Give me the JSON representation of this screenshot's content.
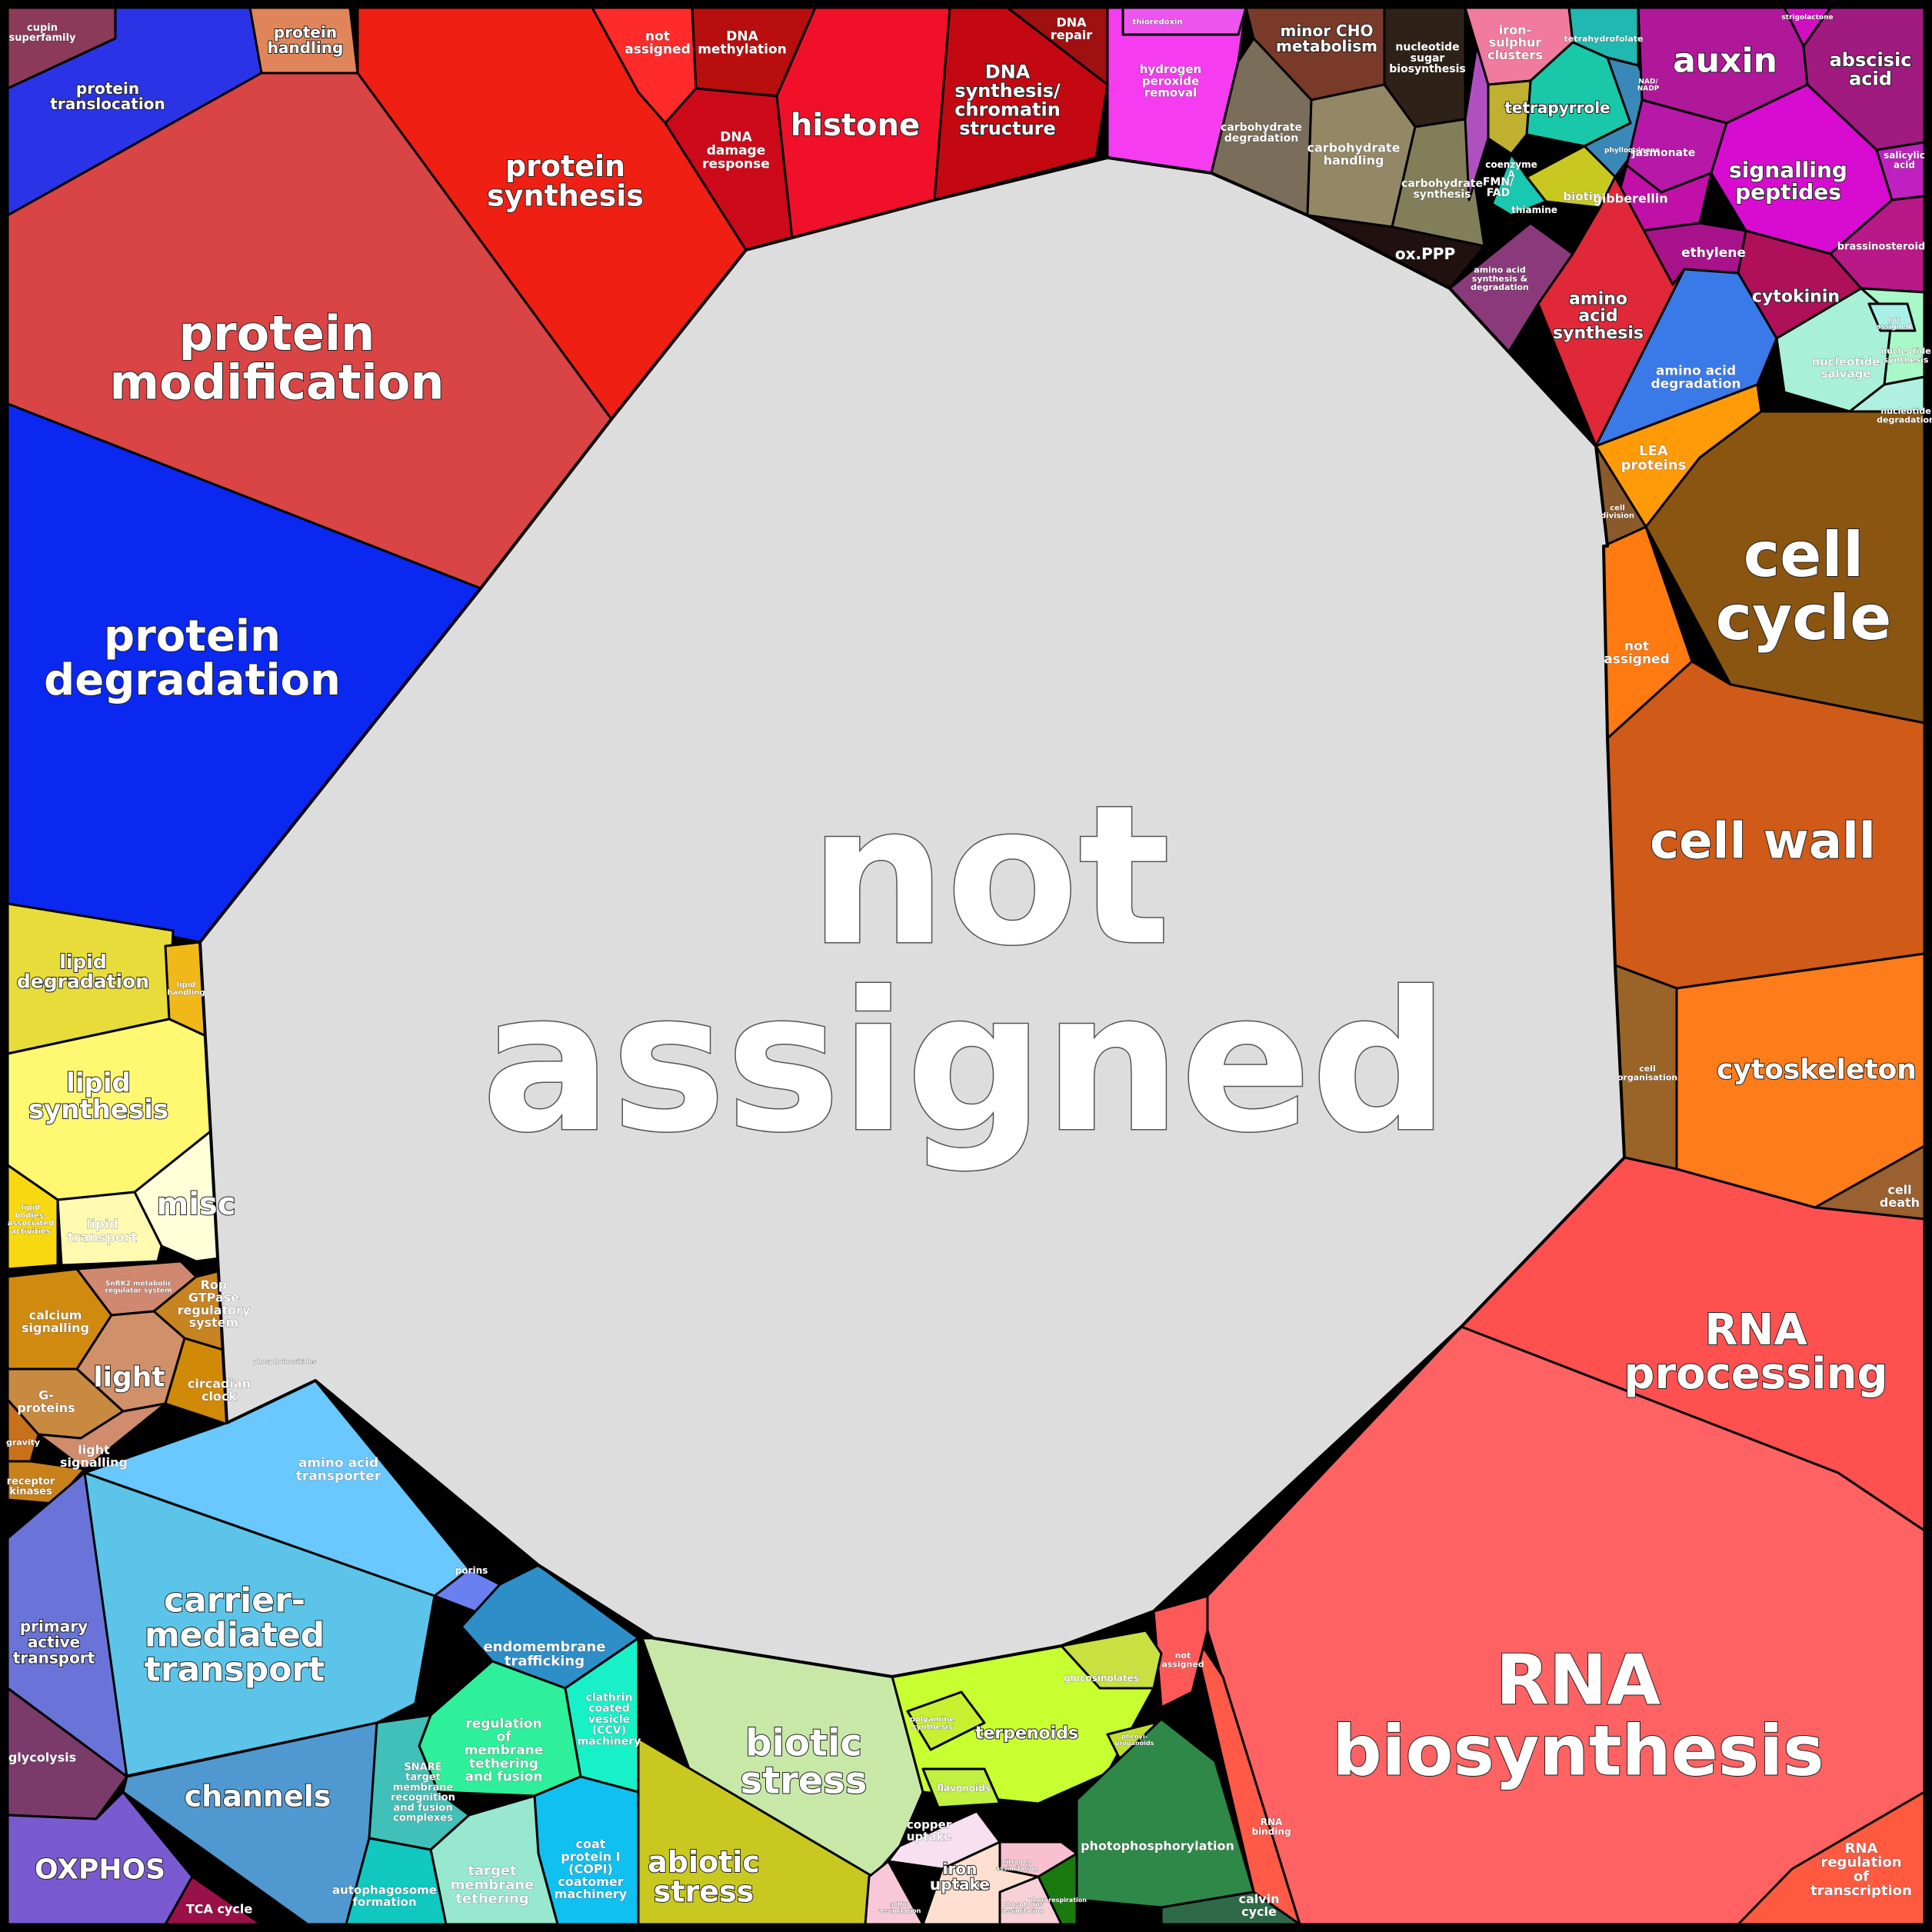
{
  "center": {
    "label": [
      "not",
      "assigned"
    ],
    "color": "#dddddd"
  },
  "regions": [
    {
      "id": "cupin",
      "lines": [
        "cupin",
        "superfamily"
      ],
      "color": "#8b3a5a"
    },
    {
      "id": "protein-translocation",
      "lines": [
        "protein",
        "translocation"
      ],
      "color": "#2a34e6"
    },
    {
      "id": "protein-handling",
      "lines": [
        "protein",
        "handling"
      ],
      "color": "#e0855a"
    },
    {
      "id": "protein-synthesis",
      "lines": [
        "protein",
        "synthesis"
      ],
      "color": "#f01f14"
    },
    {
      "id": "protein-modification",
      "lines": [
        "protein",
        "modification"
      ],
      "color": "#d94444"
    },
    {
      "id": "protein-degradation",
      "lines": [
        "protein",
        "degradation"
      ],
      "color": "#0a28f0"
    },
    {
      "id": "dna-not-assigned",
      "lines": [
        "not",
        "assigned"
      ],
      "color": "#ff2a2a"
    },
    {
      "id": "dna-methylation",
      "lines": [
        "DNA",
        "methylation"
      ],
      "color": "#b80e0e"
    },
    {
      "id": "dna-damage",
      "lines": [
        "DNA",
        "damage",
        "response"
      ],
      "color": "#cc0a1a"
    },
    {
      "id": "histone",
      "lines": [
        "histone"
      ],
      "color": "#f0102a"
    },
    {
      "id": "dna-synthesis",
      "lines": [
        "DNA",
        "synthesis/",
        "chromatin",
        "structure"
      ],
      "color": "#c40812"
    },
    {
      "id": "dna-repair",
      "lines": [
        "DNA",
        "repair"
      ],
      "color": "#a01010"
    },
    {
      "id": "redox",
      "lines": [
        "hydrogen",
        "peroxide",
        "removal"
      ],
      "color": "#f53cf0"
    },
    {
      "id": "thioredoxin",
      "lines": [
        "thioredoxin"
      ],
      "color": "#ee55ee"
    },
    {
      "id": "minor-cho",
      "lines": [
        "minor CHO",
        "metabolism"
      ],
      "color": "#7a3a2a"
    },
    {
      "id": "nucleotide-sugar",
      "lines": [
        "nucleotide",
        "sugar",
        "biosynthesis"
      ],
      "color": "#2e2218"
    },
    {
      "id": "carb-degradation",
      "lines": [
        "carbohydrate",
        "degradation"
      ],
      "color": "#7a6e5a"
    },
    {
      "id": "carb-handling",
      "lines": [
        "carbohydrate",
        "handling"
      ],
      "color": "#948765"
    },
    {
      "id": "carb-synthesis",
      "lines": [
        "carbohydrate",
        "synthesis"
      ],
      "color": "#827e5a"
    },
    {
      "id": "ox-ppp",
      "lines": [
        "ox.PPP"
      ],
      "color": "#201010"
    },
    {
      "id": "iron-sulphur",
      "lines": [
        "iron-",
        "sulphur",
        "clusters"
      ],
      "color": "#f07aa0"
    },
    {
      "id": "tetrahydrofolate",
      "lines": [
        "tetrahydrofolate"
      ],
      "color": "#20b8b0"
    },
    {
      "id": "tetrapyrrole",
      "lines": [
        "tetrapyrrole"
      ],
      "color": "#18c8a8"
    },
    {
      "id": "nad",
      "lines": [
        "NAD/",
        "NADP"
      ],
      "color": "#3a8ab0"
    },
    {
      "id": "phylloquinone",
      "lines": [
        "phylloquinone"
      ],
      "color": "#3a88b8"
    },
    {
      "id": "coenzyme-a",
      "lines": [
        "coenzyme",
        "A"
      ],
      "color": "#c0b030"
    },
    {
      "id": "fmn",
      "lines": [
        "FMN/",
        "FAD"
      ],
      "color": "#b050c0"
    },
    {
      "id": "biotin",
      "lines": [
        "biotin"
      ],
      "color": "#c8c820"
    },
    {
      "id": "thiamine",
      "lines": [
        "thiamine"
      ],
      "color": "#18c8b0"
    },
    {
      "id": "auxin",
      "lines": [
        "auxin"
      ],
      "color": "#b0189a"
    },
    {
      "id": "abscisic",
      "lines": [
        "abscisic",
        "acid"
      ],
      "color": "#a01a80"
    },
    {
      "id": "strigolactone",
      "lines": [
        "strigolactone"
      ],
      "color": "#d010c0"
    },
    {
      "id": "jasmonate",
      "lines": [
        "jasmonate"
      ],
      "color": "#b818a8"
    },
    {
      "id": "signalling-peptides",
      "lines": [
        "signalling",
        "peptides"
      ],
      "color": "#d80cd0"
    },
    {
      "id": "salicylic",
      "lines": [
        "salicylic",
        "acid"
      ],
      "color": "#c020c0"
    },
    {
      "id": "gibberellin",
      "lines": [
        "gibberellin"
      ],
      "color": "#c010a8"
    },
    {
      "id": "ethylene",
      "lines": [
        "ethylene"
      ],
      "color": "#a8128a"
    },
    {
      "id": "brassinosteroid",
      "lines": [
        "brassinosteroid"
      ],
      "color": "#b81888"
    },
    {
      "id": "cytokinin",
      "lines": [
        "cytokinin"
      ],
      "color": "#b0105a"
    },
    {
      "id": "amino-acid-synth-deg",
      "lines": [
        "amino acid",
        "synthesis &",
        "degradation"
      ],
      "color": "#8a3a7a"
    },
    {
      "id": "amino-acid-synthesis",
      "lines": [
        "amino",
        "acid",
        "synthesis"
      ],
      "color": "#e02838"
    },
    {
      "id": "amino-acid-degradation",
      "lines": [
        "amino acid",
        "degradation"
      ],
      "color": "#3a7ae8"
    },
    {
      "id": "nucleotide-salvage",
      "lines": [
        "nucleotide",
        "salvage"
      ],
      "color": "#a8f0d8"
    },
    {
      "id": "nucleotide-synthesis",
      "lines": [
        "nucleotide",
        "synthesis"
      ],
      "color": "#a8f8c8"
    },
    {
      "id": "nucleotide-degradation",
      "lines": [
        "nucleotide",
        "degradation"
      ],
      "color": "#b0f0e0"
    },
    {
      "id": "nucleotide-not-assigned",
      "lines": [
        "not",
        "assigned"
      ],
      "color": "#a8f0e8"
    },
    {
      "id": "lea",
      "lines": [
        "LEA",
        "proteins"
      ],
      "color": "#ff9a08"
    },
    {
      "id": "cell-division",
      "lines": [
        "cell",
        "division"
      ],
      "color": "#8a5a2a"
    },
    {
      "id": "cell-cycle",
      "lines": [
        "cell",
        "cycle"
      ],
      "color": "#8a5510"
    },
    {
      "id": "cellcycle-not-assigned",
      "lines": [
        "not",
        "assigned"
      ],
      "color": "#ff7a10"
    },
    {
      "id": "cell-wall",
      "lines": [
        "cell wall"
      ],
      "color": "#d05a18"
    },
    {
      "id": "cell-organisation",
      "lines": [
        "cell",
        "organisation"
      ],
      "color": "#9a6428"
    },
    {
      "id": "cytoskeleton",
      "lines": [
        "cytoskeleton"
      ],
      "color": "#ff7c1a"
    },
    {
      "id": "cell-death",
      "lines": [
        "cell",
        "death"
      ],
      "color": "#9a6030"
    },
    {
      "id": "rna-processing",
      "lines": [
        "RNA",
        "processing"
      ],
      "color": "#ff5050"
    },
    {
      "id": "rna-biosynthesis",
      "lines": [
        "RNA",
        "biosynthesis"
      ],
      "color": "#ff6262"
    },
    {
      "id": "rna-regulation",
      "lines": [
        "RNA",
        "regulation",
        "of",
        "transcription"
      ],
      "color": "#ff5a40"
    },
    {
      "id": "rna-binding",
      "lines": [
        "RNA",
        "binding"
      ],
      "color": "#ff5a48"
    },
    {
      "id": "rna-not-assigned",
      "lines": [
        "not",
        "assigned"
      ],
      "color": "#ff5858"
    },
    {
      "id": "lipid-degradation",
      "lines": [
        "lipid",
        "degradation"
      ],
      "color": "#e8dc3a"
    },
    {
      "id": "lipid-handling",
      "lines": [
        "lipid",
        "handling"
      ],
      "color": "#f0b818"
    },
    {
      "id": "lipid-synthesis",
      "lines": [
        "lipid",
        "synthesis"
      ],
      "color": "#fff870"
    },
    {
      "id": "misc",
      "lines": [
        "misc"
      ],
      "color": "#ffffd8"
    },
    {
      "id": "lipid-bodies",
      "lines": [
        "lipid",
        "bodies-",
        "associated",
        "activities"
      ],
      "color": "#f8d810"
    },
    {
      "id": "lipid-transport",
      "lines": [
        "lipid",
        "transport"
      ],
      "color": "#fffab0"
    },
    {
      "id": "calcium-signalling",
      "lines": [
        "calcium",
        "signalling"
      ],
      "color": "#d08a10"
    },
    {
      "id": "snrk2",
      "lines": [
        "SnRK2 metabolic",
        "regulator system"
      ],
      "color": "#d08870"
    },
    {
      "id": "rop-gtpase",
      "lines": [
        "Rop",
        "GTPase",
        "regulatory",
        "system"
      ],
      "color": "#c88420"
    },
    {
      "id": "light",
      "lines": [
        "light"
      ],
      "color": "#d0906a"
    },
    {
      "id": "g-proteins",
      "lines": [
        "G-",
        "proteins"
      ],
      "color": "#c88a40"
    },
    {
      "id": "circadian",
      "lines": [
        "circadian",
        "clock"
      ],
      "color": "#d08a08"
    },
    {
      "id": "gravity",
      "lines": [
        "gravity"
      ],
      "color": "#c8701a"
    },
    {
      "id": "light-signalling",
      "lines": [
        "light",
        "signalling"
      ],
      "color": "#d08c6c"
    },
    {
      "id": "receptor-kinases",
      "lines": [
        "receptor",
        "kinases"
      ],
      "color": "#c88018"
    },
    {
      "id": "phosphoinositides",
      "lines": [
        "phosphoinositides"
      ],
      "color": "#d08818"
    },
    {
      "id": "amino-acid-transporter",
      "lines": [
        "amino acid",
        "transporter"
      ],
      "color": "#68c8ff"
    },
    {
      "id": "carrier-mediated",
      "lines": [
        "carrier-",
        "mediated",
        "transport"
      ],
      "color": "#5cc4e8"
    },
    {
      "id": "primary-active",
      "lines": [
        "primary",
        "active",
        "transport"
      ],
      "color": "#6a74d8"
    },
    {
      "id": "channels",
      "lines": [
        "channels"
      ],
      "color": "#5098d0"
    },
    {
      "id": "porins",
      "lines": [
        "porins"
      ],
      "color": "#6a80f0"
    },
    {
      "id": "endomembrane",
      "lines": [
        "endomembrane",
        "trafficking"
      ],
      "color": "#2e8ec8"
    },
    {
      "id": "regulation-membrane",
      "lines": [
        "regulation",
        "of",
        "membrane",
        "tethering",
        "and fusion"
      ],
      "color": "#2ef09a"
    },
    {
      "id": "clathrin",
      "lines": [
        "clathrin",
        "coated",
        "vesicle",
        "(CCV)",
        "machinery"
      ],
      "color": "#18f0c8"
    },
    {
      "id": "snare",
      "lines": [
        "SNARE",
        "target",
        "membrane",
        "recognition",
        "and fusion",
        "complexes"
      ],
      "color": "#40c0b8"
    },
    {
      "id": "copi",
      "lines": [
        "coat",
        "protein I",
        "(COPI)",
        "coatomer",
        "machinery"
      ],
      "color": "#10c0f0"
    },
    {
      "id": "target-membrane",
      "lines": [
        "target",
        "membrane",
        "tethering"
      ],
      "color": "#98e8d0"
    },
    {
      "id": "autophagosome",
      "lines": [
        "autophagosome",
        "formation"
      ],
      "color": "#10c8c0"
    },
    {
      "id": "glycolysis",
      "lines": [
        "glycolysis"
      ],
      "color": "#7a3a6a"
    },
    {
      "id": "oxphos",
      "lines": [
        "OXPHOS"
      ],
      "color": "#7a5ad0"
    },
    {
      "id": "tca",
      "lines": [
        "TCA cycle"
      ],
      "color": "#9a1048"
    },
    {
      "id": "biotic-stress",
      "lines": [
        "biotic",
        "stress"
      ],
      "color": "#c8e8a8"
    },
    {
      "id": "abiotic-stress",
      "lines": [
        "abiotic",
        "stress"
      ],
      "color": "#c8c820"
    },
    {
      "id": "terpenoids",
      "lines": [
        "terpenoids"
      ],
      "color": "#c8ff30"
    },
    {
      "id": "glucosinolates",
      "lines": [
        "glucosinolates"
      ],
      "color": "#c8e040"
    },
    {
      "id": "polyamine",
      "lines": [
        "polyamine",
        "synthesis"
      ],
      "color": "#c8f030"
    },
    {
      "id": "flavonoids",
      "lines": [
        "flavonoids"
      ],
      "color": "#c0f040"
    },
    {
      "id": "phenylpropanoids",
      "lines": [
        "phenyl-",
        "propanoids"
      ],
      "color": "#c0e030"
    },
    {
      "id": "photophosphorylation",
      "lines": [
        "photophosphorylation"
      ],
      "color": "#2e8848"
    },
    {
      "id": "photorespiration",
      "lines": [
        "photorespiration"
      ],
      "color": "#1a7a10"
    },
    {
      "id": "calvin",
      "lines": [
        "calvin",
        "cycle"
      ],
      "color": "#2e6a48"
    },
    {
      "id": "copper-uptake",
      "lines": [
        "copper",
        "uptake"
      ],
      "color": "#f8e0f0"
    },
    {
      "id": "iron-uptake",
      "lines": [
        "iron",
        "uptake"
      ],
      "color": "#ffe0d0"
    },
    {
      "id": "nitrogen-assimilation",
      "lines": [
        "nitrogen",
        "assimilation"
      ],
      "color": "#f8c0d0"
    },
    {
      "id": "sulfur-assimilation",
      "lines": [
        "sulfur",
        "assimilation"
      ],
      "color": "#f8c8d8"
    },
    {
      "id": "phosphorus-assimilation",
      "lines": [
        "phosphorus",
        "assimilation"
      ],
      "color": "#f8d0d8"
    }
  ]
}
